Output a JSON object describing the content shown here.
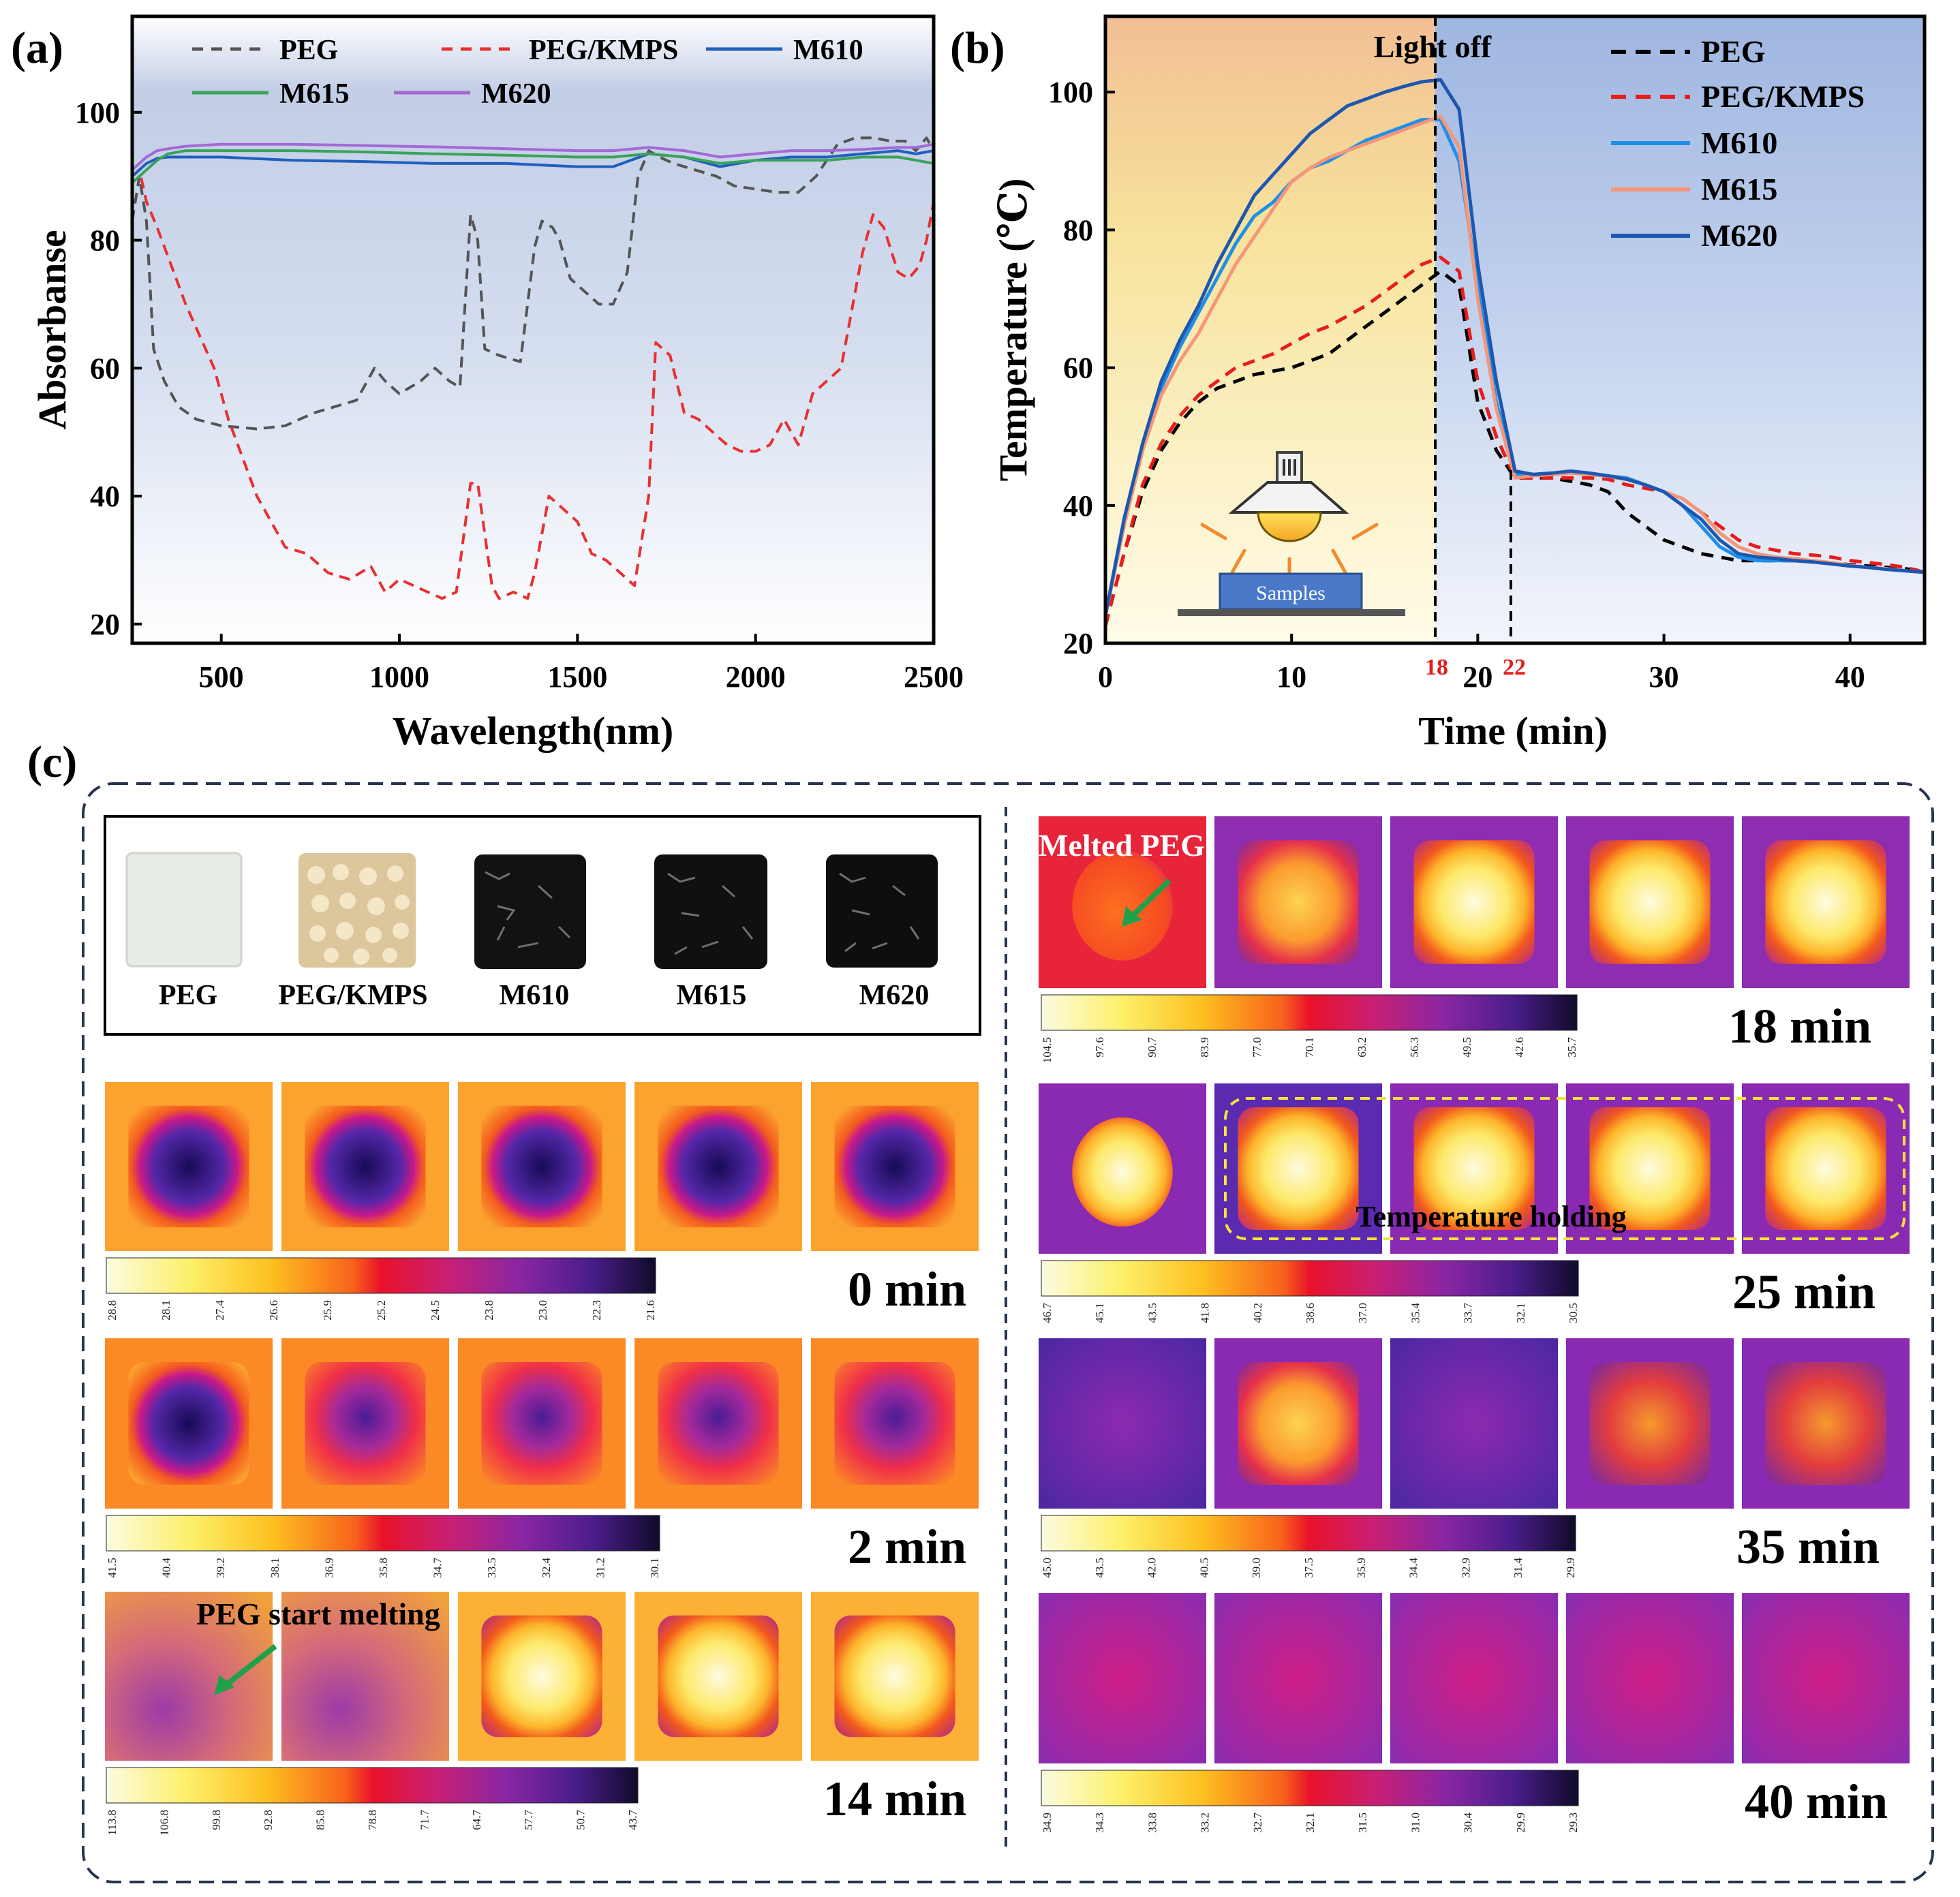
{
  "chart_data": [
    {
      "panel": "(a)",
      "type": "line",
      "xlabel": "Wavelength(nm)",
      "ylabel": "Absorbanse",
      "xlim": [
        250,
        2500
      ],
      "ylim": [
        17,
        115
      ],
      "xticks": [
        500,
        1000,
        1500,
        2000,
        2500
      ],
      "yticks": [
        20,
        40,
        60,
        80,
        100
      ],
      "legend": [
        "PEG",
        "PEG/KMPS",
        "M610",
        "M615",
        "M620"
      ],
      "series": [
        {
          "name": "PEG",
          "color": "#555555",
          "dash": true,
          "x": [
            250,
            270,
            290,
            310,
            340,
            380,
            430,
            500,
            600,
            680,
            760,
            820,
            880,
            910,
            930,
            960,
            1000,
            1060,
            1100,
            1140,
            1170,
            1200,
            1220,
            1240,
            1280,
            1340,
            1380,
            1400,
            1430,
            1450,
            1480,
            1520,
            1560,
            1600,
            1640,
            1670,
            1700,
            1730,
            1770,
            1830,
            1890,
            1940,
            2000,
            2060,
            2120,
            2170,
            2230,
            2280,
            2330,
            2380,
            2420,
            2450,
            2480,
            2500
          ],
          "y": [
            83,
            90,
            83,
            63,
            58,
            54,
            52,
            51,
            50.5,
            51,
            53,
            54,
            55,
            58,
            60,
            58,
            56,
            58,
            60,
            58,
            57,
            84,
            80,
            63,
            62,
            61,
            79,
            83,
            82,
            80,
            74,
            72,
            70,
            70,
            75,
            90,
            94,
            93,
            92,
            91,
            90,
            88.5,
            88,
            87.5,
            87.5,
            90,
            95,
            96,
            96,
            95.5,
            95.5,
            94,
            96,
            94
          ]
        },
        {
          "name": "PEG/KMPS",
          "color": "#e83030",
          "dash": true,
          "x": [
            250,
            270,
            290,
            320,
            360,
            400,
            440,
            480,
            520,
            560,
            600,
            640,
            680,
            740,
            800,
            860,
            920,
            960,
            1000,
            1040,
            1080,
            1120,
            1160,
            1200,
            1220,
            1260,
            1280,
            1320,
            1360,
            1380,
            1420,
            1460,
            1500,
            1540,
            1580,
            1620,
            1660,
            1700,
            1720,
            1760,
            1800,
            1840,
            1880,
            1920,
            1960,
            2000,
            2040,
            2080,
            2120,
            2160,
            2200,
            2240,
            2280,
            2300,
            2330,
            2360,
            2400,
            2430,
            2460,
            2480,
            2500
          ],
          "y": [
            90,
            91,
            86,
            82,
            76,
            70,
            65,
            60,
            52,
            46,
            40,
            36,
            32,
            31,
            28,
            27,
            29,
            25,
            27,
            26,
            25,
            24,
            25,
            42,
            42,
            26,
            24,
            25,
            24,
            28,
            40,
            38,
            36,
            31,
            30,
            28,
            26,
            40,
            64,
            62,
            53,
            52,
            50,
            48,
            47,
            47,
            48,
            52,
            48,
            56,
            58,
            60,
            72,
            78,
            84,
            82,
            75,
            74,
            76,
            80,
            86
          ]
        },
        {
          "name": "M610",
          "color": "#1f5fbf",
          "dash": false,
          "x": [
            250,
            270,
            290,
            320,
            350,
            400,
            500,
            700,
            900,
            1100,
            1300,
            1500,
            1600,
            1700,
            1800,
            1900,
            2000,
            2100,
            2200,
            2300,
            2400,
            2450,
            2500
          ],
          "y": [
            90,
            91,
            92,
            92.8,
            93,
            93,
            93,
            92.5,
            92.3,
            92,
            92,
            91.5,
            91.5,
            93.5,
            93,
            91.5,
            92.5,
            93,
            93,
            93.5,
            94,
            93.5,
            94
          ]
        },
        {
          "name": "M615",
          "color": "#3aa35a",
          "dash": false,
          "x": [
            250,
            270,
            290,
            320,
            350,
            400,
            500,
            700,
            900,
            1100,
            1300,
            1500,
            1600,
            1700,
            1800,
            1900,
            2000,
            2100,
            2200,
            2300,
            2400,
            2450,
            2500
          ],
          "y": [
            89,
            90,
            91,
            92.5,
            93.5,
            94,
            94,
            94,
            93.8,
            93.5,
            93.3,
            93,
            93,
            93.5,
            93,
            92,
            92.5,
            92.5,
            92.5,
            93,
            93,
            92.5,
            92
          ]
        },
        {
          "name": "M620",
          "color": "#a36ad6",
          "dash": false,
          "x": [
            250,
            270,
            290,
            320,
            350,
            400,
            500,
            700,
            900,
            1100,
            1300,
            1500,
            1600,
            1700,
            1800,
            1900,
            2000,
            2100,
            2200,
            2300,
            2400,
            2450,
            2500
          ],
          "y": [
            91,
            92,
            93,
            94,
            94.3,
            94.7,
            95,
            95,
            94.8,
            94.6,
            94.3,
            94,
            94,
            94.5,
            94,
            93,
            93.5,
            94,
            94,
            94.2,
            94.5,
            94.5,
            95
          ]
        }
      ]
    },
    {
      "panel": "(b)",
      "type": "line",
      "xlabel": "Time (min)",
      "ylabel": "Temperature (℃)",
      "xlim": [
        0,
        44
      ],
      "ylim": [
        20,
        111
      ],
      "xticks": [
        0,
        10,
        20,
        30,
        40
      ],
      "yticks": [
        20,
        40,
        60,
        80,
        100
      ],
      "light_off_label": "Light off",
      "marker_times": [
        "18",
        "22"
      ],
      "sample_label": "Samples",
      "legend": [
        "PEG",
        "PEG/KMPS",
        "M610",
        "M615",
        "M620"
      ],
      "series": [
        {
          "name": "PEG",
          "color": "#000000",
          "dash": true,
          "x": [
            0,
            1,
            2,
            3,
            4,
            5,
            6,
            7,
            8,
            9,
            10,
            11,
            12,
            13,
            14,
            15,
            16,
            17,
            18,
            19,
            20,
            21,
            22,
            23,
            24,
            25,
            26,
            27,
            28,
            29,
            30,
            31,
            32,
            33,
            34,
            35,
            36,
            37,
            38,
            39,
            40,
            41,
            42,
            43,
            44
          ],
          "y": [
            22.5,
            33,
            42,
            48,
            52,
            55,
            57,
            58,
            59,
            59.5,
            60,
            61,
            62,
            64,
            66,
            68,
            70,
            72,
            74,
            72,
            55,
            48,
            44,
            44,
            44,
            43.5,
            43,
            42,
            39,
            37,
            35,
            34,
            33,
            32.5,
            32,
            32,
            32,
            32,
            31.8,
            31.6,
            31.4,
            31.2,
            31,
            30.8,
            30.5
          ]
        },
        {
          "name": "PEG/KMPS",
          "color": "#e81c1c",
          "dash": true,
          "x": [
            0,
            1,
            2,
            3,
            4,
            5,
            6,
            7,
            8,
            9,
            10,
            11,
            12,
            13,
            14,
            15,
            16,
            17,
            18,
            19,
            20,
            21,
            22,
            23,
            24,
            25,
            26,
            27,
            28,
            29,
            30,
            31,
            32,
            33,
            34,
            35,
            36,
            37,
            38,
            39,
            40,
            41,
            42,
            43,
            44
          ],
          "y": [
            22.5,
            33,
            43,
            49,
            53,
            56,
            58,
            60,
            61,
            62,
            63.5,
            65,
            66,
            67.5,
            69,
            71,
            73,
            75,
            76,
            74,
            58,
            50,
            44,
            44,
            44,
            44,
            44,
            43.8,
            43,
            42.5,
            42,
            41,
            39,
            37,
            35,
            34,
            33.5,
            33,
            32.8,
            32.5,
            32,
            31.7,
            31.4,
            31,
            30.3
          ]
        },
        {
          "name": "M610",
          "color": "#1f8fe8",
          "dash": false,
          "x": [
            0,
            1,
            2,
            3,
            4,
            5,
            6,
            7,
            8,
            9,
            10,
            11,
            12,
            13,
            14,
            15,
            16,
            17,
            18,
            19,
            20,
            21,
            22,
            23,
            24,
            25,
            26,
            27,
            28,
            29,
            30,
            31,
            32,
            33,
            34,
            35,
            36,
            37,
            38,
            39,
            40,
            41,
            42,
            43,
            44
          ],
          "y": [
            24,
            37,
            48,
            57,
            63,
            68,
            73,
            78,
            82,
            84,
            87,
            89,
            90,
            91.5,
            93,
            94,
            95,
            96,
            96,
            90,
            72,
            55,
            44.5,
            44.5,
            44.7,
            44.8,
            44.6,
            44.3,
            44,
            43,
            42,
            40,
            37,
            34,
            32.5,
            32,
            32,
            32,
            31.8,
            31.6,
            31.3,
            31,
            30.8,
            30.5,
            30.3
          ]
        },
        {
          "name": "M615",
          "color": "#f4967a",
          "dash": false,
          "x": [
            0,
            1,
            2,
            3,
            4,
            5,
            6,
            7,
            8,
            9,
            10,
            11,
            12,
            13,
            14,
            15,
            16,
            17,
            18,
            19,
            20,
            21,
            22,
            23,
            24,
            25,
            26,
            27,
            28,
            29,
            30,
            31,
            32,
            33,
            34,
            35,
            36,
            37,
            38,
            39,
            40,
            41,
            42,
            43,
            44
          ],
          "y": [
            24,
            37,
            48,
            56,
            61,
            65,
            70,
            75,
            79,
            83,
            87,
            89,
            90.5,
            91.5,
            92.5,
            93.5,
            94.5,
            95.5,
            96.5,
            92,
            70,
            54,
            44,
            44.3,
            44.5,
            44.7,
            44.5,
            44.2,
            43.8,
            43,
            42,
            41,
            39,
            36,
            34,
            33,
            32.5,
            32.3,
            32,
            31.7,
            31.3,
            31,
            30.8,
            30.5,
            30.3
          ]
        },
        {
          "name": "M620",
          "color": "#1c58b0",
          "dash": false,
          "x": [
            0,
            1,
            2,
            3,
            4,
            5,
            6,
            7,
            8,
            9,
            10,
            11,
            12,
            13,
            14,
            15,
            16,
            17,
            18,
            19,
            20,
            21,
            22,
            23,
            24,
            25,
            26,
            27,
            28,
            29,
            30,
            31,
            32,
            33,
            34,
            35,
            36,
            37,
            38,
            39,
            40,
            41,
            42,
            43,
            44
          ],
          "y": [
            24,
            38,
            49,
            58,
            64,
            69,
            75,
            80,
            85,
            88,
            91,
            94,
            96,
            98,
            99,
            100,
            100.8,
            101.5,
            101.8,
            97.5,
            75,
            58,
            45,
            44.5,
            44.7,
            45,
            44.7,
            44.3,
            43.8,
            43,
            42,
            40,
            38,
            35,
            33,
            32.5,
            32.3,
            32,
            31.8,
            31.5,
            31.2,
            31,
            30.7,
            30.5,
            30.3
          ]
        }
      ]
    }
  ],
  "panel_c": {
    "label": "(c)",
    "sample_names": [
      "PEG",
      "PEG/KMPS",
      "M610",
      "M615",
      "M620"
    ],
    "left_rows": [
      {
        "time": "0 min",
        "scale": [
          "28.8",
          "28.1",
          "27.4",
          "26.6",
          "25.9",
          "25.2",
          "24.5",
          "23.8",
          "23.0",
          "22.3",
          "21.6"
        ]
      },
      {
        "time": "2 min",
        "scale": [
          "41.5",
          "40.4",
          "39.2",
          "38.1",
          "36.9",
          "35.8",
          "34.7",
          "33.5",
          "32.4",
          "31.2",
          "30.1"
        ]
      },
      {
        "time": "14 min",
        "scale": [
          "113.8",
          "106.8",
          "99.8",
          "92.8",
          "85.8",
          "78.8",
          "71.7",
          "64.7",
          "57.7",
          "50.7",
          "43.7"
        ],
        "note": "PEG start melting"
      }
    ],
    "right_rows": [
      {
        "time": "18 min",
        "scale": [
          "104.5",
          "97.6",
          "90.7",
          "83.9",
          "77.0",
          "70.1",
          "63.2",
          "56.3",
          "49.5",
          "42.6",
          "35.7"
        ],
        "note": "Melted PEG"
      },
      {
        "time": "25 min",
        "scale": [
          "46.7",
          "45.1",
          "43.5",
          "41.8",
          "40.2",
          "38.6",
          "37.0",
          "35.4",
          "33.7",
          "32.1",
          "30.5"
        ],
        "note": "Temperature holding"
      },
      {
        "time": "35 min",
        "scale": [
          "45.0",
          "43.5",
          "42.0",
          "40.5",
          "39.0",
          "37.5",
          "35.9",
          "34.4",
          "32.9",
          "31.4",
          "29.9"
        ]
      },
      {
        "time": "40 min",
        "scale": [
          "34.9",
          "34.3",
          "33.8",
          "33.2",
          "32.7",
          "32.1",
          "31.5",
          "31.0",
          "30.4",
          "29.9",
          "29.3"
        ]
      }
    ]
  }
}
